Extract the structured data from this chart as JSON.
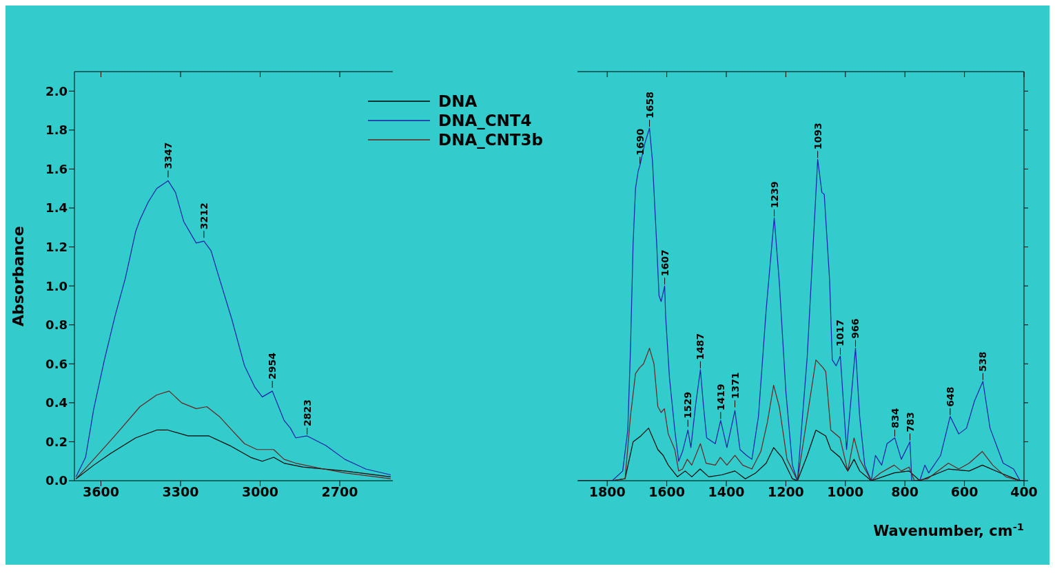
{
  "chart_data": [
    {
      "type": "line",
      "ylabel": "Absorbance",
      "xlim": [
        3700,
        2500
      ],
      "xticks": [
        3600,
        3300,
        3000,
        2700
      ],
      "ylim": [
        0,
        2.1
      ],
      "yticks": [
        {
          "value": 0,
          "label": "0.0"
        },
        {
          "value": 0.2,
          "label": "0.2"
        },
        {
          "value": 0.4,
          "label": "0.4"
        },
        {
          "value": 0.6,
          "label": "0.6"
        },
        {
          "value": 0.8,
          "label": "0.8"
        },
        {
          "value": 1.0,
          "label": "1.0"
        },
        {
          "value": 1.2,
          "label": "1.2"
        },
        {
          "value": 1.4,
          "label": "1.4"
        },
        {
          "value": 1.6,
          "label": "1.6"
        },
        {
          "value": 1.8,
          "label": "1.8"
        },
        {
          "value": 2.0,
          "label": "2.0"
        }
      ],
      "legend": "top right",
      "series": [
        {
          "name": "DNA",
          "color": "#000000",
          "x": [
            3694,
            3627,
            3564,
            3469,
            3390,
            3347,
            3272,
            3193,
            3114,
            3036,
            2992,
            2949,
            2910,
            2839,
            2681,
            2508
          ],
          "values": [
            0.01,
            0.08,
            0.14,
            0.22,
            0.26,
            0.26,
            0.23,
            0.23,
            0.18,
            0.12,
            0.1,
            0.12,
            0.09,
            0.07,
            0.05,
            0.02
          ]
        },
        {
          "name": "DNA_CNT4",
          "color": "#1c1ca8",
          "x": [
            3694,
            3658,
            3627,
            3587,
            3548,
            3508,
            3469,
            3453,
            3422,
            3390,
            3347,
            3319,
            3288,
            3241,
            3212,
            3185,
            3154,
            3107,
            3059,
            3020,
            2992,
            2954,
            2910,
            2886,
            2866,
            2823,
            2752,
            2681,
            2602,
            2508
          ],
          "values": [
            0.02,
            0.12,
            0.37,
            0.62,
            0.84,
            1.04,
            1.28,
            1.34,
            1.43,
            1.5,
            1.54,
            1.48,
            1.33,
            1.22,
            1.23,
            1.18,
            1.04,
            0.83,
            0.59,
            0.48,
            0.43,
            0.46,
            0.31,
            0.27,
            0.22,
            0.23,
            0.18,
            0.11,
            0.06,
            0.03
          ]
        },
        {
          "name": "DNA_CNT3b",
          "color": "#6e1e1e",
          "x": [
            3694,
            3627,
            3548,
            3453,
            3390,
            3343,
            3296,
            3241,
            3201,
            3154,
            3107,
            3059,
            3012,
            2965,
            2949,
            2910,
            2866,
            2760,
            2681,
            2508
          ],
          "values": [
            0.01,
            0.11,
            0.23,
            0.38,
            0.44,
            0.46,
            0.4,
            0.37,
            0.38,
            0.33,
            0.26,
            0.19,
            0.16,
            0.16,
            0.16,
            0.11,
            0.09,
            0.06,
            0.04,
            0.01
          ]
        }
      ],
      "annotations": [
        {
          "text": "3347",
          "x": 3347,
          "y": 1.55
        },
        {
          "text": "3212",
          "x": 3212,
          "y": 1.24
        },
        {
          "text": "2954",
          "x": 2954,
          "y": 0.47
        },
        {
          "text": "2823",
          "x": 2823,
          "y": 0.23
        }
      ]
    },
    {
      "type": "line",
      "xlabel": "Wavenumber, cm$^{-1}$",
      "xlim": [
        1900,
        400
      ],
      "xticks": [
        1800,
        1600,
        1400,
        1200,
        1000,
        800,
        600,
        400
      ],
      "ylim": [
        0,
        2.1
      ],
      "yticks": [
        0,
        0.2,
        0.4,
        0.6,
        0.8,
        1.0,
        1.2,
        1.4,
        1.6,
        1.8,
        2.0
      ],
      "tick_labels": "x",
      "series": [
        {
          "color": "#000000",
          "x": [
            1897,
            1783,
            1740,
            1713,
            1687,
            1661,
            1630,
            1612,
            1595,
            1564,
            1538,
            1516,
            1488,
            1459,
            1415,
            1371,
            1336,
            1301,
            1266,
            1241,
            1213,
            1178,
            1161,
            1128,
            1099,
            1066,
            1049,
            1018,
            992,
            971,
            952,
            913,
            836,
            786,
            750,
            654,
            584,
            540,
            479,
            413,
            400
          ],
          "values": [
            0,
            0,
            0.01,
            0.2,
            0.23,
            0.27,
            0.16,
            0.13,
            0.08,
            0.02,
            0.05,
            0.02,
            0.06,
            0.02,
            0.03,
            0.05,
            0.01,
            0.04,
            0.09,
            0.17,
            0.12,
            0.01,
            0,
            0.13,
            0.26,
            0.23,
            0.16,
            0.12,
            0.05,
            0.11,
            0.05,
            0,
            0.04,
            0.05,
            0,
            0.06,
            0.05,
            0.08,
            0.04,
            0,
            0
          ]
        },
        {
          "color": "#1c1ca8",
          "x": [
            1897,
            1783,
            1748,
            1731,
            1722,
            1713,
            1705,
            1696,
            1690,
            1674,
            1658,
            1648,
            1634,
            1626,
            1619,
            1607,
            1604,
            1591,
            1573,
            1560,
            1547,
            1529,
            1519,
            1503,
            1487,
            1477,
            1466,
            1437,
            1419,
            1398,
            1371,
            1354,
            1332,
            1314,
            1292,
            1266,
            1239,
            1222,
            1200,
            1178,
            1161,
            1128,
            1093,
            1079,
            1071,
            1053,
            1044,
            1031,
            1017,
            996,
            966,
            952,
            935,
            913,
            899,
            878,
            860,
            834,
            812,
            783,
            777,
            750,
            733,
            720,
            680,
            648,
            619,
            593,
            566,
            538,
            514,
            470,
            435,
            413,
            400
          ],
          "values": [
            0,
            0,
            0.05,
            0.26,
            0.67,
            1.22,
            1.5,
            1.59,
            1.62,
            1.73,
            1.81,
            1.64,
            1.22,
            0.95,
            0.92,
            1.0,
            0.85,
            0.53,
            0.26,
            0.1,
            0.15,
            0.26,
            0.17,
            0.39,
            0.57,
            0.39,
            0.22,
            0.19,
            0.31,
            0.17,
            0.36,
            0.16,
            0.13,
            0.11,
            0.33,
            0.88,
            1.35,
            1.02,
            0.46,
            0.08,
            0,
            0.64,
            1.65,
            1.48,
            1.47,
            1.03,
            0.62,
            0.59,
            0.64,
            0.16,
            0.68,
            0.33,
            0.08,
            0,
            0.13,
            0.08,
            0.19,
            0.22,
            0.11,
            0.2,
            0,
            0,
            0.08,
            0.04,
            0.13,
            0.33,
            0.24,
            0.27,
            0.41,
            0.51,
            0.27,
            0.09,
            0.06,
            0,
            0
          ]
        },
        {
          "color": "#6e1e1e",
          "x": [
            1897,
            1783,
            1740,
            1722,
            1705,
            1691,
            1678,
            1658,
            1643,
            1630,
            1619,
            1608,
            1595,
            1573,
            1560,
            1547,
            1531,
            1516,
            1487,
            1468,
            1437,
            1420,
            1398,
            1371,
            1345,
            1314,
            1284,
            1262,
            1241,
            1222,
            1196,
            1161,
            1128,
            1099,
            1075,
            1066,
            1049,
            1018,
            992,
            971,
            952,
            913,
            882,
            836,
            812,
            786,
            768,
            724,
            654,
            619,
            584,
            540,
            505,
            461,
            413,
            400
          ],
          "values": [
            0,
            0,
            0.01,
            0.33,
            0.55,
            0.58,
            0.6,
            0.68,
            0.6,
            0.38,
            0.35,
            0.37,
            0.24,
            0.16,
            0.05,
            0.06,
            0.11,
            0.08,
            0.19,
            0.09,
            0.08,
            0.12,
            0.08,
            0.13,
            0.08,
            0.06,
            0.15,
            0.3,
            0.49,
            0.38,
            0.11,
            0,
            0.33,
            0.62,
            0.58,
            0.56,
            0.26,
            0.22,
            0.05,
            0.22,
            0.11,
            0,
            0.04,
            0.08,
            0.05,
            0.07,
            0,
            0.01,
            0.09,
            0.06,
            0.09,
            0.15,
            0.08,
            0.02,
            0,
            0
          ]
        }
      ],
      "annotations": [
        {
          "text": "1690",
          "x": 1690,
          "y": 1.62
        },
        {
          "text": "1658",
          "x": 1658,
          "y": 1.81
        },
        {
          "text": "1607",
          "x": 1607,
          "y": 1.0
        },
        {
          "text": "1529",
          "x": 1529,
          "y": 0.27
        },
        {
          "text": "1487",
          "x": 1487,
          "y": 0.57
        },
        {
          "text": "1419",
          "x": 1419,
          "y": 0.31
        },
        {
          "text": "1371",
          "x": 1371,
          "y": 0.37
        },
        {
          "text": "1239",
          "x": 1239,
          "y": 1.35
        },
        {
          "text": "1093",
          "x": 1093,
          "y": 1.65
        },
        {
          "text": "1017",
          "x": 1017,
          "y": 0.64
        },
        {
          "text": "966",
          "x": 966,
          "y": 0.68
        },
        {
          "text": "834",
          "x": 834,
          "y": 0.22
        },
        {
          "text": "783",
          "x": 783,
          "y": 0.2
        },
        {
          "text": "648",
          "x": 648,
          "y": 0.33
        },
        {
          "text": "538",
          "x": 538,
          "y": 0.51
        }
      ]
    }
  ]
}
